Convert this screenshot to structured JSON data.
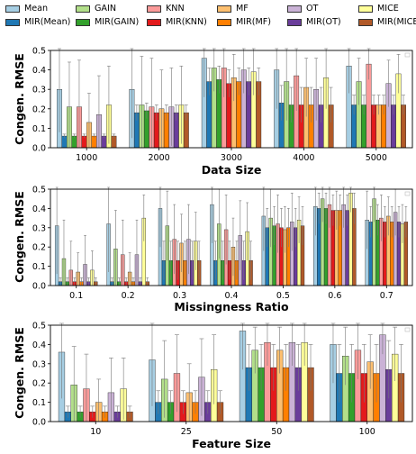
{
  "colors": {
    "Mean": "#a6cee3",
    "MIR(Mean)": "#1f78b4",
    "GAIN": "#b2df8a",
    "MIR(GAIN)": "#33a02c",
    "KNN": "#fb9a99",
    "MIR(KNN)": "#e31a1c",
    "MF": "#fdbf6f",
    "MIR(MF)": "#ff7f00",
    "OT": "#cab2d6",
    "MIR(OT)": "#6a3d9a",
    "MICE": "#ffff99",
    "MIR(MICE)": "#b15928"
  },
  "legend": {
    "rows": [
      [
        "Mean",
        "GAIN",
        "KNN",
        "MF",
        "OT",
        "MICE"
      ],
      [
        "MIR(Mean)",
        "MIR(GAIN)",
        "MIR(KNN)",
        "MIR(MF)",
        "MIR(OT)",
        "MIR(MICE)"
      ]
    ]
  },
  "chart_data": [
    {
      "type": "bar",
      "xlabel": "Data Size",
      "ylabel": "Congen. RMSE",
      "ylim": [
        0,
        0.5
      ],
      "yticks": [
        "0.0",
        "0.1",
        "0.2",
        "0.3",
        "0.4",
        "0.5"
      ],
      "categories": [
        "1000",
        "2000",
        "3000",
        "4000",
        "5000"
      ],
      "series": [
        {
          "name": "Mean",
          "values": [
            0.3,
            0.3,
            0.46,
            0.4,
            0.42
          ],
          "errors": [
            0.22,
            0.25,
            0.2,
            0.2,
            0.14
          ]
        },
        {
          "name": "MIR(Mean)",
          "values": [
            0.06,
            0.18,
            0.34,
            0.23,
            0.22
          ],
          "errors": [
            0.01,
            0.04,
            0.07,
            0.09,
            0.05
          ]
        },
        {
          "name": "GAIN",
          "values": [
            0.21,
            0.22,
            0.41,
            0.34,
            0.34
          ],
          "errors": [
            0.23,
            0.25,
            0.12,
            0.2,
            0.12
          ]
        },
        {
          "name": "MIR(GAIN)",
          "values": [
            0.06,
            0.19,
            0.35,
            0.22,
            0.22
          ],
          "errors": [
            0.01,
            0.04,
            0.07,
            0.09,
            0.05
          ]
        },
        {
          "name": "KNN",
          "values": [
            0.21,
            0.21,
            0.41,
            0.37,
            0.43
          ],
          "errors": [
            0.24,
            0.25,
            0.15,
            0.18,
            0.08
          ]
        },
        {
          "name": "MIR(KNN)",
          "values": [
            0.06,
            0.18,
            0.33,
            0.22,
            0.22
          ],
          "errors": [
            0.01,
            0.04,
            0.07,
            0.09,
            0.05
          ]
        },
        {
          "name": "MF",
          "values": [
            0.13,
            0.2,
            0.36,
            0.31,
            0.22
          ],
          "errors": [
            0.15,
            0.2,
            0.12,
            0.15,
            0.05
          ]
        },
        {
          "name": "MIR(MF)",
          "values": [
            0.06,
            0.18,
            0.34,
            0.22,
            0.22
          ],
          "errors": [
            0.01,
            0.04,
            0.07,
            0.09,
            0.05
          ]
        },
        {
          "name": "OT",
          "values": [
            0.17,
            0.21,
            0.4,
            0.3,
            0.33
          ],
          "errors": [
            0.2,
            0.2,
            0.12,
            0.16,
            0.12
          ]
        },
        {
          "name": "MIR(OT)",
          "values": [
            0.06,
            0.18,
            0.34,
            0.22,
            0.22
          ],
          "errors": [
            0.01,
            0.04,
            0.07,
            0.09,
            0.05
          ]
        },
        {
          "name": "MICE",
          "values": [
            0.22,
            0.22,
            0.39,
            0.36,
            0.38
          ],
          "errors": [
            0.2,
            0.2,
            0.12,
            0.16,
            0.1
          ]
        },
        {
          "name": "MIR(MICE)",
          "values": [
            0.06,
            0.18,
            0.34,
            0.22,
            0.22
          ],
          "errors": [
            0.01,
            0.04,
            0.07,
            0.09,
            0.05
          ]
        }
      ]
    },
    {
      "type": "bar",
      "xlabel": "Missingness Ratio",
      "ylabel": "Congen. RMSE",
      "ylim": [
        0,
        0.5
      ],
      "yticks": [
        "0.0",
        "0.1",
        "0.2",
        "0.3",
        "0.4",
        "0.5"
      ],
      "categories": [
        "0.1",
        "0.2",
        "0.3",
        "0.4",
        "0.5",
        "0.6",
        "0.7"
      ],
      "series": [
        {
          "name": "Mean",
          "values": [
            0.31,
            0.32,
            0.4,
            0.42,
            0.36,
            0.41,
            0.34
          ],
          "errors": [
            0.25,
            0.25,
            0.2,
            0.2,
            0.18,
            0.15,
            0.15
          ]
        },
        {
          "name": "MIR(Mean)",
          "values": [
            0.02,
            0.02,
            0.13,
            0.13,
            0.3,
            0.4,
            0.33
          ],
          "errors": [
            0.02,
            0.02,
            0.1,
            0.1,
            0.1,
            0.08,
            0.08
          ]
        },
        {
          "name": "GAIN",
          "values": [
            0.14,
            0.19,
            0.31,
            0.32,
            0.35,
            0.45,
            0.45
          ],
          "errors": [
            0.2,
            0.2,
            0.18,
            0.18,
            0.15,
            0.12,
            0.12
          ]
        },
        {
          "name": "MIR(GAIN)",
          "values": [
            0.02,
            0.02,
            0.13,
            0.13,
            0.31,
            0.4,
            0.34
          ],
          "errors": [
            0.02,
            0.02,
            0.1,
            0.1,
            0.1,
            0.08,
            0.08
          ]
        },
        {
          "name": "KNN",
          "values": [
            0.08,
            0.16,
            0.24,
            0.29,
            0.32,
            0.42,
            0.35
          ],
          "errors": [
            0.15,
            0.18,
            0.18,
            0.18,
            0.15,
            0.12,
            0.12
          ]
        },
        {
          "name": "MIR(KNN)",
          "values": [
            0.02,
            0.02,
            0.13,
            0.13,
            0.3,
            0.39,
            0.33
          ],
          "errors": [
            0.02,
            0.02,
            0.1,
            0.1,
            0.1,
            0.08,
            0.08
          ]
        },
        {
          "name": "MF",
          "values": [
            0.07,
            0.07,
            0.22,
            0.2,
            0.29,
            0.39,
            0.36
          ],
          "errors": [
            0.1,
            0.1,
            0.15,
            0.15,
            0.12,
            0.1,
            0.1
          ]
        },
        {
          "name": "MIR(MF)",
          "values": [
            0.02,
            0.02,
            0.13,
            0.13,
            0.3,
            0.39,
            0.33
          ],
          "errors": [
            0.02,
            0.02,
            0.1,
            0.1,
            0.1,
            0.08,
            0.08
          ]
        },
        {
          "name": "OT",
          "values": [
            0.11,
            0.16,
            0.24,
            0.26,
            0.33,
            0.42,
            0.38
          ],
          "errors": [
            0.15,
            0.18,
            0.18,
            0.18,
            0.15,
            0.12,
            0.12
          ]
        },
        {
          "name": "MIR(OT)",
          "values": [
            0.02,
            0.02,
            0.13,
            0.13,
            0.3,
            0.39,
            0.33
          ],
          "errors": [
            0.02,
            0.02,
            0.1,
            0.1,
            0.1,
            0.08,
            0.08
          ]
        },
        {
          "name": "MICE",
          "values": [
            0.08,
            0.35,
            0.23,
            0.28,
            0.34,
            0.48,
            0.32
          ],
          "errors": [
            0.1,
            0.12,
            0.15,
            0.15,
            0.12,
            0.1,
            0.1
          ]
        },
        {
          "name": "MIR(MICE)",
          "values": [
            0.02,
            0.02,
            0.13,
            0.13,
            0.31,
            0.4,
            0.33
          ],
          "errors": [
            0.02,
            0.02,
            0.1,
            0.1,
            0.1,
            0.08,
            0.08
          ]
        }
      ]
    },
    {
      "type": "bar",
      "xlabel": "Feature Size",
      "ylabel": "Congen. RMSE",
      "ylim": [
        0,
        0.5
      ],
      "yticks": [
        "0.0",
        "0.1",
        "0.2",
        "0.3",
        "0.4",
        "0.5"
      ],
      "categories": [
        "10",
        "25",
        "50",
        "100"
      ],
      "series": [
        {
          "name": "Mean",
          "values": [
            0.36,
            0.32,
            0.47,
            0.4
          ],
          "errors": [
            0.24,
            0.24,
            0.2,
            0.2
          ]
        },
        {
          "name": "MIR(Mean)",
          "values": [
            0.05,
            0.1,
            0.28,
            0.25
          ],
          "errors": [
            0.03,
            0.06,
            0.12,
            0.15
          ]
        },
        {
          "name": "GAIN",
          "values": [
            0.19,
            0.22,
            0.37,
            0.34
          ],
          "errors": [
            0.2,
            0.2,
            0.12,
            0.15
          ]
        },
        {
          "name": "MIR(GAIN)",
          "values": [
            0.05,
            0.1,
            0.28,
            0.25
          ],
          "errors": [
            0.03,
            0.06,
            0.12,
            0.15
          ]
        },
        {
          "name": "KNN",
          "values": [
            0.17,
            0.25,
            0.41,
            0.37
          ],
          "errors": [
            0.18,
            0.2,
            0.12,
            0.15
          ]
        },
        {
          "name": "MIR(KNN)",
          "values": [
            0.05,
            0.1,
            0.28,
            0.25
          ],
          "errors": [
            0.03,
            0.06,
            0.12,
            0.15
          ]
        },
        {
          "name": "MF",
          "values": [
            0.1,
            0.15,
            0.37,
            0.31
          ],
          "errors": [
            0.12,
            0.15,
            0.12,
            0.14
          ]
        },
        {
          "name": "MIR(MF)",
          "values": [
            0.05,
            0.1,
            0.28,
            0.25
          ],
          "errors": [
            0.03,
            0.06,
            0.12,
            0.15
          ]
        },
        {
          "name": "OT",
          "values": [
            0.15,
            0.23,
            0.41,
            0.45
          ],
          "errors": [
            0.18,
            0.2,
            0.12,
            0.1
          ]
        },
        {
          "name": "MIR(OT)",
          "values": [
            0.05,
            0.1,
            0.28,
            0.27
          ],
          "errors": [
            0.03,
            0.06,
            0.12,
            0.15
          ]
        },
        {
          "name": "MICE",
          "values": [
            0.17,
            0.27,
            0.41,
            0.35
          ],
          "errors": [
            0.16,
            0.18,
            0.12,
            0.14
          ]
        },
        {
          "name": "MIR(MICE)",
          "values": [
            0.05,
            0.1,
            0.28,
            0.25
          ],
          "errors": [
            0.03,
            0.06,
            0.12,
            0.15
          ]
        }
      ]
    }
  ]
}
